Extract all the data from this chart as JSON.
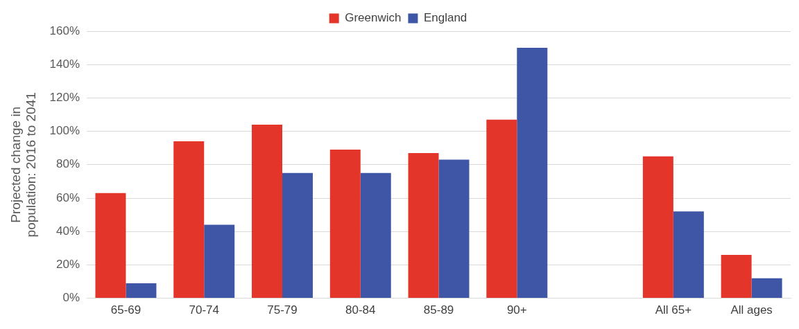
{
  "chart_data": {
    "type": "bar",
    "ylabel": "Projected change in population: 2016 to 2041",
    "categories": [
      "65-69",
      "70-74",
      "75-79",
      "80-84",
      "85-89",
      "90+",
      null,
      "All 65+",
      "All ages"
    ],
    "series": [
      {
        "name": "Greenwich",
        "color": "#e3352a",
        "values": [
          63,
          94,
          104,
          89,
          87,
          107,
          null,
          85,
          26
        ]
      },
      {
        "name": "England",
        "color": "#3f56a6",
        "values": [
          9,
          44,
          75,
          75,
          83,
          150,
          null,
          52,
          12
        ]
      }
    ],
    "ylim": [
      0,
      160
    ],
    "yticks": [
      {
        "value": 0,
        "label": "0%"
      },
      {
        "value": 20,
        "label": "20%"
      },
      {
        "value": 40,
        "label": "40%"
      },
      {
        "value": 60,
        "label": "60%"
      },
      {
        "value": 80,
        "label": "80%"
      },
      {
        "value": 100,
        "label": "100%"
      },
      {
        "value": 120,
        "label": "120%"
      },
      {
        "value": 140,
        "label": "140%"
      },
      {
        "value": 160,
        "label": "160%"
      }
    ],
    "grid": "y",
    "legend": "top"
  }
}
